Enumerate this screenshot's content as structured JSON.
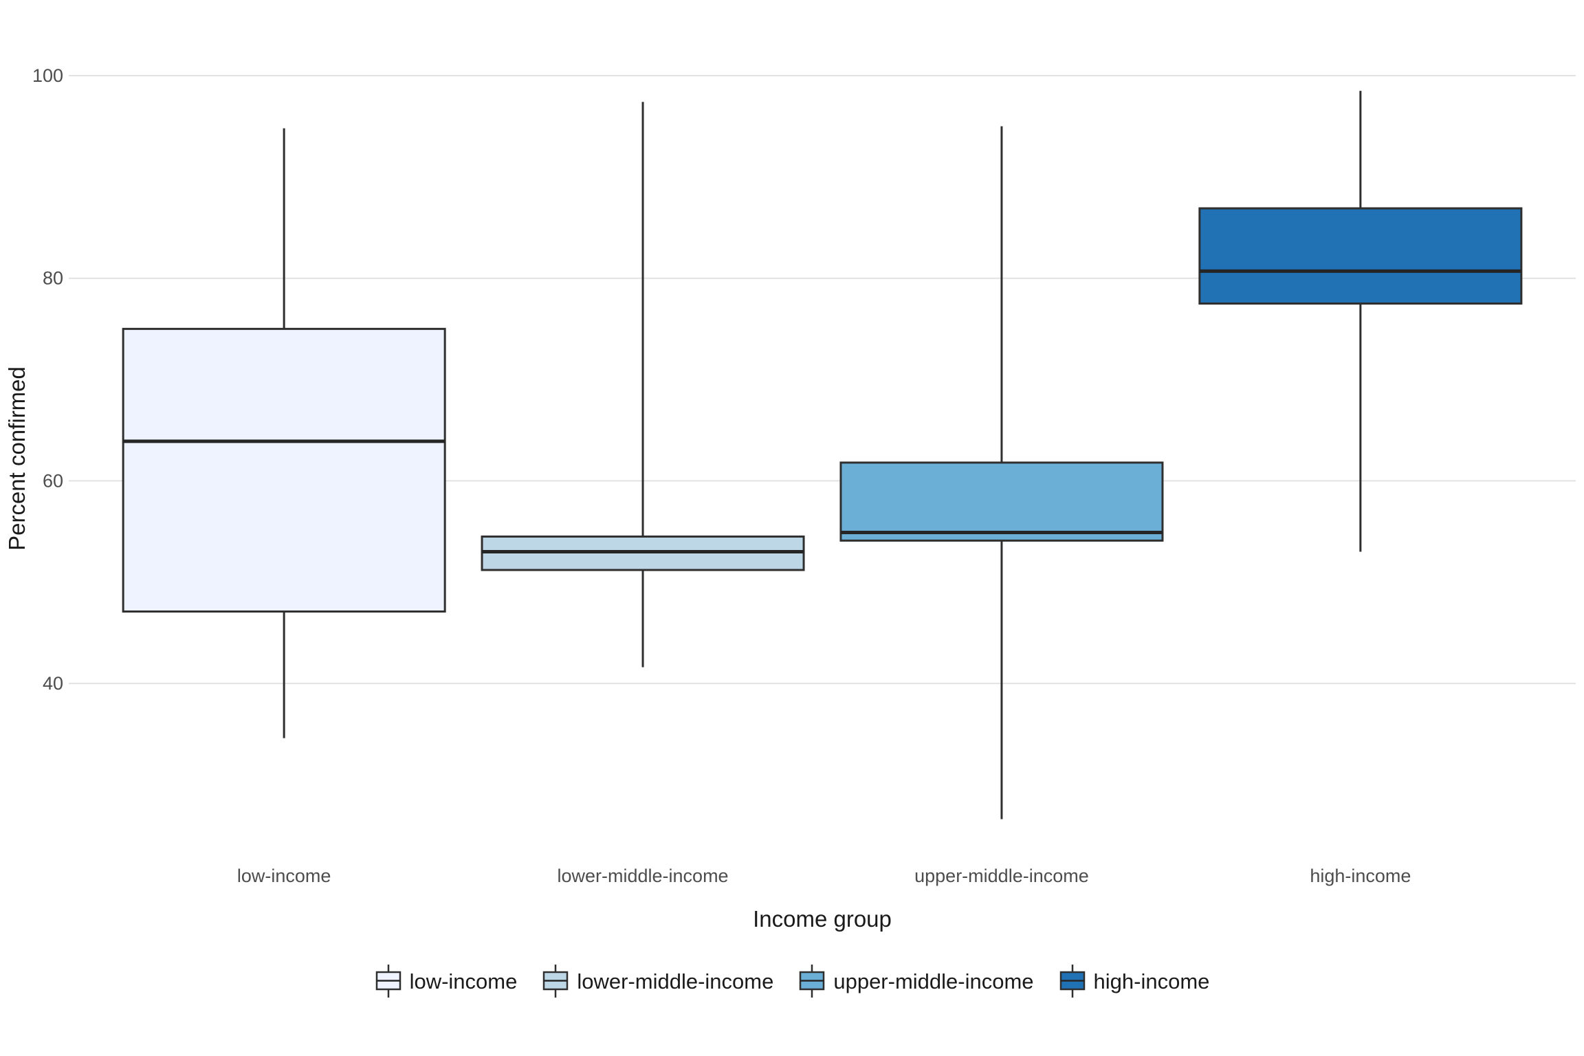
{
  "chart_data": {
    "type": "boxplot",
    "title": "",
    "xlabel": "Income group",
    "ylabel": "Percent confirmed",
    "categories": [
      "low-income",
      "lower-middle-income",
      "upper-middle-income",
      "high-income"
    ],
    "y_ticks": [
      40,
      60,
      80,
      100
    ],
    "ylim": [
      23,
      102
    ],
    "grid": "horizontal-major-only",
    "legend_position": "bottom",
    "series": [
      {
        "name": "low-income",
        "fill": "#EFF3FF",
        "min": 34.6,
        "q1": 47.1,
        "median": 63.9,
        "q3": 75.0,
        "max": 94.8
      },
      {
        "name": "lower-middle-income",
        "fill": "#BDD7E7",
        "min": 41.6,
        "q1": 51.2,
        "median": 53.0,
        "q3": 54.5,
        "max": 97.4
      },
      {
        "name": "upper-middle-income",
        "fill": "#6BAED6",
        "min": 26.6,
        "q1": 54.1,
        "median": 54.9,
        "q3": 61.8,
        "max": 95.0
      },
      {
        "name": "high-income",
        "fill": "#2171B5",
        "min": 53.0,
        "q1": 77.5,
        "median": 80.7,
        "q3": 86.9,
        "max": 98.5
      }
    ],
    "colors": {
      "box_stroke": "#2f2f2f",
      "median_stroke": "#252525",
      "whisker_stroke": "#2f2f2f",
      "gridline": "#e2e2e2",
      "tick_label": "#4d4d4d",
      "axis_title": "#1a1a1a",
      "background": "#ffffff"
    }
  },
  "legend": {
    "items": [
      "low-income",
      "lower-middle-income",
      "upper-middle-income",
      "high-income"
    ]
  }
}
